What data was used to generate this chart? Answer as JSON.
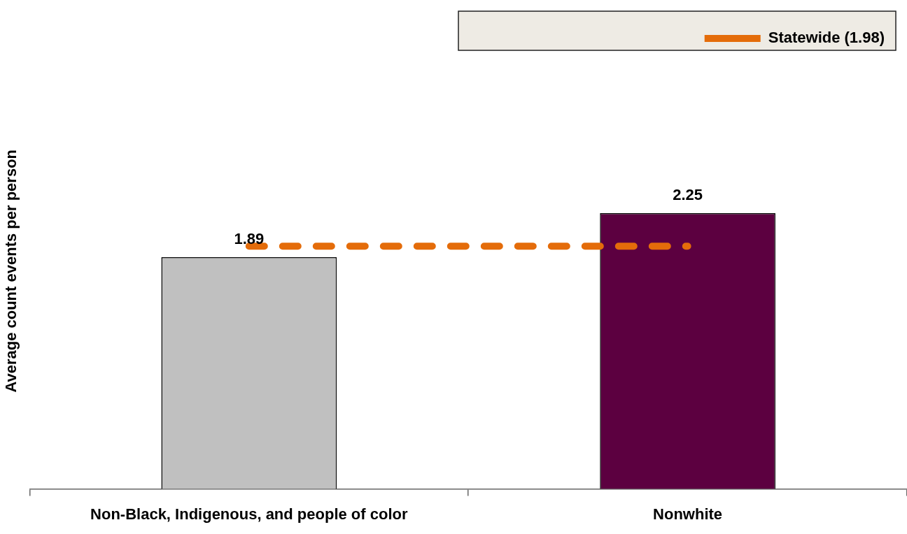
{
  "chart_data": {
    "type": "bar",
    "ylabel": "Average count events per person",
    "categories": [
      "Non-Black, Indigenous, and people of color",
      "Nonwhite"
    ],
    "series": [
      {
        "colors": [
          "#c0c0c0",
          "#5c0040"
        ],
        "values": [
          1.89,
          2.25
        ],
        "value_labels": [
          "1.89",
          "2.25"
        ]
      },
      {
        "type": "line",
        "name": "Statewide (1.98)",
        "color": "#e46c0a",
        "values": [
          1.98,
          1.98
        ],
        "line_style": "dashed",
        "marker": "none"
      }
    ],
    "legend": "top right",
    "grid": false,
    "tick_labels": "x"
  }
}
